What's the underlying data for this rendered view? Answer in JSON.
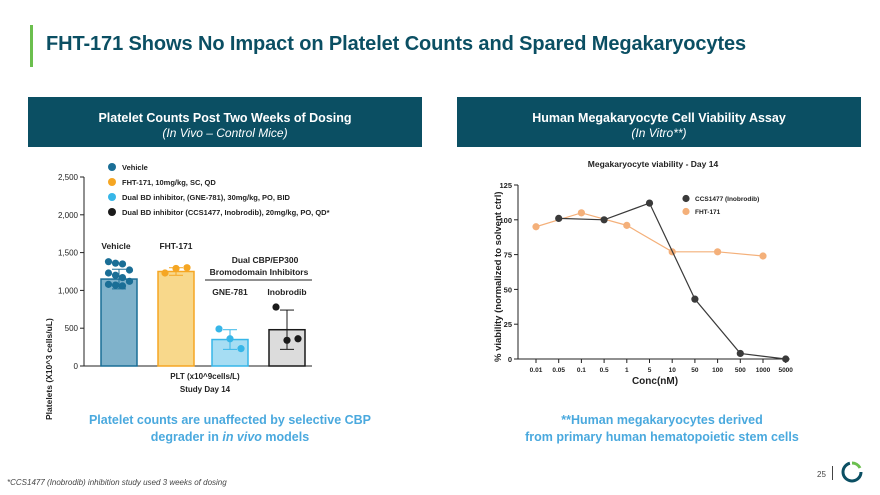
{
  "title": "FHT-171 Shows No Impact on Platelet Counts and Spared Megakaryocytes",
  "left_panel": {
    "title": "Platelet Counts Post Two Weeks of Dosing",
    "subtitle": "(In Vivo – Control Mice)",
    "caption_line1": "Platelet counts are unaffected by selective CBP",
    "caption_line2_prefix": "degrader in ",
    "caption_line2_italic": "in vivo",
    "caption_line2_suffix": " models"
  },
  "right_panel": {
    "title": "Human Megakaryocyte Cell Viability Assay",
    "subtitle": "(In Vitro**)",
    "caption_line1": "**Human megakaryocytes derived",
    "caption_line2": "from primary human hematopoietic stem cells"
  },
  "footnote": "*CCS1477 (Inobrodib) inhibition study used 3 weeks of dosing",
  "page_number": "25",
  "colors": {
    "brand": "#0b4f63",
    "accent": "#6bbf4e",
    "caption": "#4aa9de",
    "vehicle": "#1a6e96",
    "fht": "#f5a623",
    "gne": "#37b6e8",
    "ccs": "#1a1a1a"
  },
  "chart_data": [
    {
      "type": "bar",
      "title": "Platelet Counts Post Two Weeks of Dosing",
      "ylabel": "Platelets (X10^3 cells/uL)",
      "xlabel_line1": "PLT (x10^9cells/L)",
      "xlabel_line2": "Study Day 14",
      "ylim": [
        0,
        2500
      ],
      "yticks": [
        "0",
        "500",
        "1,000",
        "1,500",
        "2,000",
        "2,500"
      ],
      "legend": [
        {
          "label": "Vehicle",
          "color": "#1a6e96"
        },
        {
          "label": "FHT-171, 10mg/kg, SC, QD",
          "color": "#f5a623"
        },
        {
          "label": "Dual BD inhibitor, (GNE-781), 30mg/kg, PO, BID",
          "color": "#37b6e8"
        },
        {
          "label": "Dual BD inhibitor  (CCS1477, Inobrodib), 20mg/kg, PO, QD*",
          "color": "#1a1a1a"
        }
      ],
      "group_label_line1": "Dual CBP/EP300",
      "group_label_line2": "Bromodomain Inhibitors",
      "bars": [
        {
          "name": "Vehicle",
          "label": "Vehicle",
          "value": 1150,
          "err": 130,
          "points": [
            1380,
            1360,
            1350,
            1270,
            1230,
            1200,
            1170,
            1120,
            1080,
            1070,
            1060
          ],
          "fill": "#7fb2cb",
          "border": "#1a6e96",
          "dot": "#1a6e96"
        },
        {
          "name": "FHT-171",
          "label": "FHT-171",
          "value": 1250,
          "err": 50,
          "points": [
            1230,
            1290,
            1300
          ],
          "fill": "#f8d88b",
          "border": "#f5a623",
          "dot": "#f5a623"
        },
        {
          "name": "GNE-781",
          "label": "GNE-781",
          "value": 350,
          "err": 130,
          "points": [
            490,
            360,
            230
          ],
          "fill": "#a6ddf3",
          "border": "#37b6e8",
          "dot": "#37b6e8"
        },
        {
          "name": "Inobrodib",
          "label": "Inobrodib",
          "value": 480,
          "err": 260,
          "points": [
            780,
            340,
            360
          ],
          "fill": "#dcdcdc",
          "border": "#1a1a1a",
          "dot": "#1a1a1a"
        }
      ]
    },
    {
      "type": "line",
      "title": "Megakaryocyte viability - Day 14",
      "xlabel": "Conc(nM)",
      "ylabel": "% viability (normalized to solvent ctrl)",
      "ylim": [
        0,
        125
      ],
      "yticks": [
        "0",
        "25",
        "50",
        "75",
        "100",
        "125"
      ],
      "categories": [
        "0.01",
        "0.05",
        "0.1",
        "0.5",
        "1",
        "5",
        "10",
        "50",
        "100",
        "500",
        "1000",
        "5000"
      ],
      "series": [
        {
          "name": "CCS1477 (Inobrodib)",
          "color": "#3a3a3a",
          "points": [
            [
              1,
              101
            ],
            [
              3,
              100
            ],
            [
              5,
              112
            ],
            [
              7,
              43
            ],
            [
              9,
              4
            ],
            [
              11,
              0
            ]
          ]
        },
        {
          "name": "FHT-171",
          "color": "#f4b07a",
          "points": [
            [
              0,
              95
            ],
            [
              2,
              105
            ],
            [
              4,
              96
            ],
            [
              6,
              77
            ],
            [
              8,
              77
            ],
            [
              10,
              74
            ]
          ]
        }
      ]
    }
  ]
}
